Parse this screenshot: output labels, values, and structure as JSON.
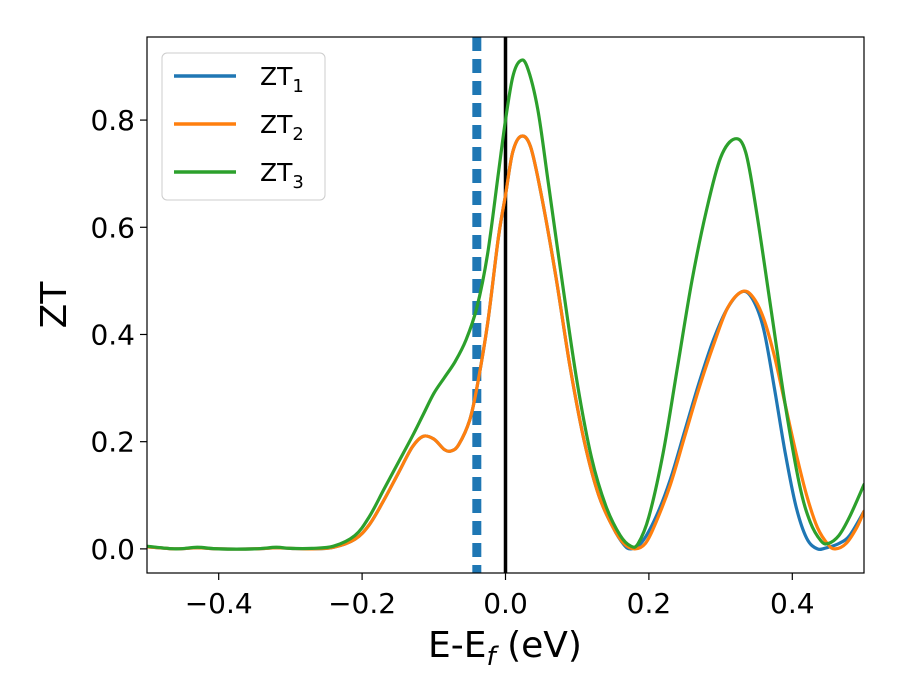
{
  "chart_data": {
    "type": "line",
    "xlabel": {
      "main": "E-E",
      "sub": "f",
      "suffix": " (eV)"
    },
    "ylabel": "ZT",
    "xlim": [
      -0.5,
      0.5
    ],
    "ylim": [
      -0.045,
      0.955
    ],
    "xticks": [
      -0.4,
      -0.2,
      0.0,
      0.2,
      0.4
    ],
    "xtick_labels": [
      "−0.4",
      "−0.2",
      "0.0",
      "0.2",
      "0.4"
    ],
    "yticks": [
      0.0,
      0.2,
      0.4,
      0.6,
      0.8
    ],
    "ytick_labels": [
      "0.0",
      "0.2",
      "0.4",
      "0.6",
      "0.8"
    ],
    "legend_position": "top-left",
    "vertical_lines": [
      {
        "x": -0.04,
        "style": "dashed",
        "color": "#1f77b4"
      },
      {
        "x": 0.0,
        "style": "solid",
        "color": "#000000"
      }
    ],
    "series": [
      {
        "name": "ZT",
        "name_sub": "1",
        "color": "#1f77b4",
        "points": [
          [
            -0.5,
            0.004
          ],
          [
            -0.46,
            0.0
          ],
          [
            -0.43,
            0.002
          ],
          [
            -0.4,
            0.0
          ],
          [
            -0.35,
            0.0
          ],
          [
            -0.32,
            0.002
          ],
          [
            -0.3,
            0.001
          ],
          [
            -0.27,
            0.0
          ],
          [
            -0.24,
            0.003
          ],
          [
            -0.21,
            0.018
          ],
          [
            -0.19,
            0.045
          ],
          [
            -0.17,
            0.09
          ],
          [
            -0.15,
            0.14
          ],
          [
            -0.13,
            0.19
          ],
          [
            -0.115,
            0.21
          ],
          [
            -0.1,
            0.205
          ],
          [
            -0.085,
            0.185
          ],
          [
            -0.075,
            0.183
          ],
          [
            -0.065,
            0.195
          ],
          [
            -0.05,
            0.24
          ],
          [
            -0.04,
            0.3
          ],
          [
            -0.025,
            0.42
          ],
          [
            -0.01,
            0.58
          ],
          [
            0.0,
            0.66
          ],
          [
            0.01,
            0.74
          ],
          [
            0.022,
            0.77
          ],
          [
            0.035,
            0.75
          ],
          [
            0.05,
            0.66
          ],
          [
            0.07,
            0.51
          ],
          [
            0.09,
            0.34
          ],
          [
            0.11,
            0.2
          ],
          [
            0.13,
            0.1
          ],
          [
            0.15,
            0.04
          ],
          [
            0.165,
            0.008
          ],
          [
            0.175,
            0.0
          ],
          [
            0.19,
            0.012
          ],
          [
            0.21,
            0.06
          ],
          [
            0.23,
            0.13
          ],
          [
            0.25,
            0.22
          ],
          [
            0.27,
            0.31
          ],
          [
            0.29,
            0.39
          ],
          [
            0.31,
            0.45
          ],
          [
            0.33,
            0.48
          ],
          [
            0.345,
            0.465
          ],
          [
            0.36,
            0.41
          ],
          [
            0.375,
            0.3
          ],
          [
            0.39,
            0.18
          ],
          [
            0.405,
            0.08
          ],
          [
            0.42,
            0.02
          ],
          [
            0.435,
            0.0
          ],
          [
            0.45,
            0.003
          ],
          [
            0.465,
            0.01
          ],
          [
            0.48,
            0.025
          ],
          [
            0.5,
            0.07
          ]
        ]
      },
      {
        "name": "ZT",
        "name_sub": "2",
        "color": "#ff7f0e",
        "points": [
          [
            -0.5,
            0.004
          ],
          [
            -0.46,
            0.0
          ],
          [
            -0.43,
            0.002
          ],
          [
            -0.4,
            0.0
          ],
          [
            -0.35,
            0.0
          ],
          [
            -0.32,
            0.002
          ],
          [
            -0.3,
            0.001
          ],
          [
            -0.27,
            0.0
          ],
          [
            -0.24,
            0.003
          ],
          [
            -0.21,
            0.018
          ],
          [
            -0.19,
            0.045
          ],
          [
            -0.17,
            0.09
          ],
          [
            -0.15,
            0.14
          ],
          [
            -0.13,
            0.19
          ],
          [
            -0.115,
            0.21
          ],
          [
            -0.1,
            0.205
          ],
          [
            -0.085,
            0.185
          ],
          [
            -0.075,
            0.183
          ],
          [
            -0.065,
            0.195
          ],
          [
            -0.05,
            0.24
          ],
          [
            -0.04,
            0.3
          ],
          [
            -0.025,
            0.42
          ],
          [
            -0.01,
            0.58
          ],
          [
            0.0,
            0.66
          ],
          [
            0.01,
            0.74
          ],
          [
            0.022,
            0.77
          ],
          [
            0.035,
            0.75
          ],
          [
            0.05,
            0.66
          ],
          [
            0.07,
            0.51
          ],
          [
            0.09,
            0.34
          ],
          [
            0.11,
            0.2
          ],
          [
            0.13,
            0.1
          ],
          [
            0.15,
            0.04
          ],
          [
            0.165,
            0.01
          ],
          [
            0.18,
            0.0
          ],
          [
            0.195,
            0.01
          ],
          [
            0.21,
            0.05
          ],
          [
            0.23,
            0.12
          ],
          [
            0.25,
            0.21
          ],
          [
            0.27,
            0.3
          ],
          [
            0.29,
            0.38
          ],
          [
            0.31,
            0.45
          ],
          [
            0.33,
            0.48
          ],
          [
            0.345,
            0.47
          ],
          [
            0.36,
            0.43
          ],
          [
            0.375,
            0.36
          ],
          [
            0.39,
            0.27
          ],
          [
            0.405,
            0.18
          ],
          [
            0.42,
            0.1
          ],
          [
            0.435,
            0.04
          ],
          [
            0.45,
            0.008
          ],
          [
            0.46,
            0.0
          ],
          [
            0.475,
            0.01
          ],
          [
            0.49,
            0.04
          ],
          [
            0.5,
            0.07
          ]
        ]
      },
      {
        "name": "ZT",
        "name_sub": "3",
        "color": "#2ca02c",
        "points": [
          [
            -0.5,
            0.005
          ],
          [
            -0.46,
            0.0
          ],
          [
            -0.43,
            0.003
          ],
          [
            -0.4,
            0.0
          ],
          [
            -0.35,
            0.0
          ],
          [
            -0.32,
            0.003
          ],
          [
            -0.3,
            0.001
          ],
          [
            -0.27,
            0.001
          ],
          [
            -0.24,
            0.005
          ],
          [
            -0.21,
            0.025
          ],
          [
            -0.19,
            0.06
          ],
          [
            -0.17,
            0.11
          ],
          [
            -0.15,
            0.16
          ],
          [
            -0.13,
            0.21
          ],
          [
            -0.115,
            0.25
          ],
          [
            -0.1,
            0.29
          ],
          [
            -0.085,
            0.32
          ],
          [
            -0.07,
            0.35
          ],
          [
            -0.055,
            0.39
          ],
          [
            -0.04,
            0.45
          ],
          [
            -0.025,
            0.55
          ],
          [
            -0.01,
            0.7
          ],
          [
            0.0,
            0.8
          ],
          [
            0.01,
            0.88
          ],
          [
            0.02,
            0.91
          ],
          [
            0.03,
            0.9
          ],
          [
            0.045,
            0.82
          ],
          [
            0.06,
            0.68
          ],
          [
            0.08,
            0.49
          ],
          [
            0.1,
            0.31
          ],
          [
            0.12,
            0.17
          ],
          [
            0.14,
            0.08
          ],
          [
            0.16,
            0.025
          ],
          [
            0.175,
            0.005
          ],
          [
            0.185,
            0.01
          ],
          [
            0.2,
            0.06
          ],
          [
            0.22,
            0.18
          ],
          [
            0.24,
            0.34
          ],
          [
            0.26,
            0.5
          ],
          [
            0.28,
            0.63
          ],
          [
            0.3,
            0.73
          ],
          [
            0.32,
            0.765
          ],
          [
            0.335,
            0.74
          ],
          [
            0.35,
            0.63
          ],
          [
            0.37,
            0.45
          ],
          [
            0.39,
            0.27
          ],
          [
            0.41,
            0.12
          ],
          [
            0.425,
            0.05
          ],
          [
            0.44,
            0.015
          ],
          [
            0.45,
            0.01
          ],
          [
            0.465,
            0.025
          ],
          [
            0.48,
            0.06
          ],
          [
            0.5,
            0.12
          ]
        ]
      }
    ]
  }
}
